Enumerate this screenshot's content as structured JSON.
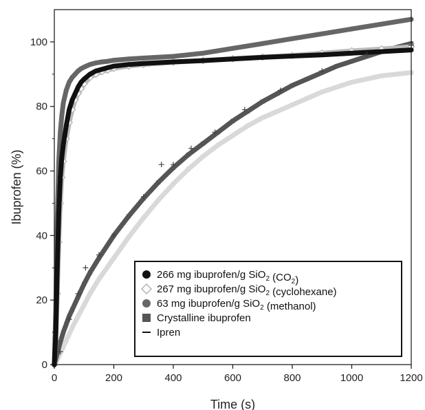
{
  "chart_data": {
    "type": "scatter",
    "title": "",
    "xlabel": "Time (s)",
    "ylabel": "Ibuprofen (%)",
    "xlim": [
      0,
      1200
    ],
    "ylim": [
      0,
      110
    ],
    "x_ticks": [
      0,
      200,
      400,
      600,
      800,
      1000,
      1200
    ],
    "y_ticks": [
      0,
      20,
      40,
      60,
      80,
      100
    ],
    "grid": false,
    "legend_position": "bottom-right",
    "series": [
      {
        "name": "266 mg ibuprofen/g SiO2 (CO2)",
        "legend_parts": [
          {
            "t": "266 mg ibuprofen/g SiO"
          },
          {
            "t": "2",
            "sub": true
          },
          {
            "t": " (CO"
          },
          {
            "t": "2",
            "sub": true
          },
          {
            "t": ")"
          }
        ],
        "marker": "circle",
        "color": "#111111",
        "x": [
          0,
          5,
          10,
          15,
          20,
          25,
          30,
          40,
          50,
          60,
          70,
          80,
          90,
          100,
          120,
          140,
          160,
          180,
          200,
          250,
          300,
          400,
          500,
          600,
          700,
          800,
          900,
          1000,
          1100,
          1200
        ],
        "y": [
          0,
          10,
          30,
          47,
          58,
          64,
          68,
          74,
          79,
          82,
          84,
          86,
          87.5,
          88.5,
          90,
          91,
          91.5,
          92,
          92.5,
          93,
          93.3,
          93.8,
          94.2,
          94.7,
          95.2,
          95.6,
          96,
          96.5,
          97,
          97.5
        ]
      },
      {
        "name": "267 mg ibuprofen/g SiO2 (cyclohexane)",
        "legend_parts": [
          {
            "t": "267 mg ibuprofen/g SiO"
          },
          {
            "t": "2",
            "sub": true
          },
          {
            "t": " (cyclohexane)"
          }
        ],
        "marker": "diamond",
        "color": "#bbbbbb",
        "x": [
          0,
          5,
          10,
          15,
          20,
          25,
          30,
          40,
          50,
          60,
          70,
          80,
          90,
          100,
          120,
          140,
          160,
          180,
          200,
          250,
          300,
          400,
          500,
          600,
          700,
          800,
          900,
          1000,
          1100,
          1200
        ],
        "y": [
          0,
          8,
          22,
          38,
          50,
          58,
          63,
          70,
          75,
          79,
          82,
          84,
          85.5,
          87,
          89,
          90,
          90.8,
          91.3,
          91.8,
          92.5,
          93,
          93.7,
          94.2,
          94.8,
          95.3,
          95.8,
          96.5,
          97.2,
          97.8,
          98.5
        ]
      },
      {
        "name": "63 mg ibuprofen/g SiO2 (methanol)",
        "legend_parts": [
          {
            "t": "63 mg ibuprofen/g SiO"
          },
          {
            "t": "2",
            "sub": true
          },
          {
            "t": " (methanol)"
          }
        ],
        "marker": "circle",
        "color": "#666666",
        "x": [
          0,
          5,
          10,
          15,
          20,
          25,
          30,
          40,
          50,
          60,
          70,
          80,
          90,
          100,
          120,
          140,
          160,
          180,
          200,
          250,
          300,
          400,
          500,
          600,
          700,
          800,
          900,
          1000,
          1100,
          1200
        ],
        "y": [
          0,
          18,
          45,
          63,
          72,
          77,
          81,
          85,
          87.5,
          89,
          90,
          91,
          91.7,
          92.2,
          93,
          93.5,
          93.8,
          94,
          94.3,
          94.7,
          95,
          95.5,
          96.5,
          98,
          99.5,
          101,
          102.5,
          104,
          105.5,
          107
        ]
      },
      {
        "name": "Crystalline ibuprofen",
        "legend_parts": [
          {
            "t": "Crystalline ibuprofen"
          }
        ],
        "marker": "square",
        "color": "#555555",
        "x": [
          0,
          10,
          20,
          30,
          40,
          50,
          60,
          80,
          100,
          120,
          150,
          200,
          250,
          300,
          350,
          400,
          450,
          500,
          550,
          600,
          650,
          700,
          750,
          800,
          850,
          900,
          950,
          1000,
          1050,
          1100,
          1150,
          1200
        ],
        "y": [
          0,
          3.5,
          7,
          10,
          12.5,
          15,
          17,
          21,
          25,
          28.5,
          33,
          40,
          46,
          51.5,
          56.5,
          61,
          65,
          68.5,
          72,
          75.5,
          78.5,
          81.5,
          84,
          86.5,
          88.5,
          90.5,
          92.5,
          94,
          95.5,
          97,
          98.3,
          99.5
        ]
      },
      {
        "name": "Ipren",
        "legend_parts": [
          {
            "t": "Ipren"
          }
        ],
        "marker": "plus",
        "color": "#444444",
        "x": [
          20,
          50,
          80,
          105,
          150,
          200,
          300,
          360,
          400,
          460,
          540,
          640,
          760,
          900,
          1050,
          1200
        ],
        "y": [
          4,
          14,
          22,
          30,
          34,
          40,
          52,
          62,
          62,
          67,
          72,
          79,
          85,
          91,
          96,
          99
        ]
      },
      {
        "name": "",
        "marker": "square",
        "color": "#d9d9d9",
        "x": [
          0,
          10,
          20,
          30,
          40,
          50,
          60,
          80,
          100,
          120,
          150,
          200,
          250,
          300,
          350,
          400,
          450,
          500,
          550,
          600,
          650,
          700,
          750,
          800,
          850,
          900,
          950,
          1000,
          1050,
          1100,
          1150,
          1200
        ],
        "y": [
          0,
          1.5,
          3.5,
          5.5,
          7.5,
          9.5,
          11.5,
          15,
          18.5,
          22,
          26.5,
          33,
          39.5,
          45.5,
          51,
          56,
          60.5,
          64.5,
          68,
          71,
          74,
          76.5,
          78.5,
          80.5,
          82.5,
          84.5,
          86,
          87.5,
          88.5,
          89.5,
          90,
          90.5
        ]
      }
    ]
  }
}
